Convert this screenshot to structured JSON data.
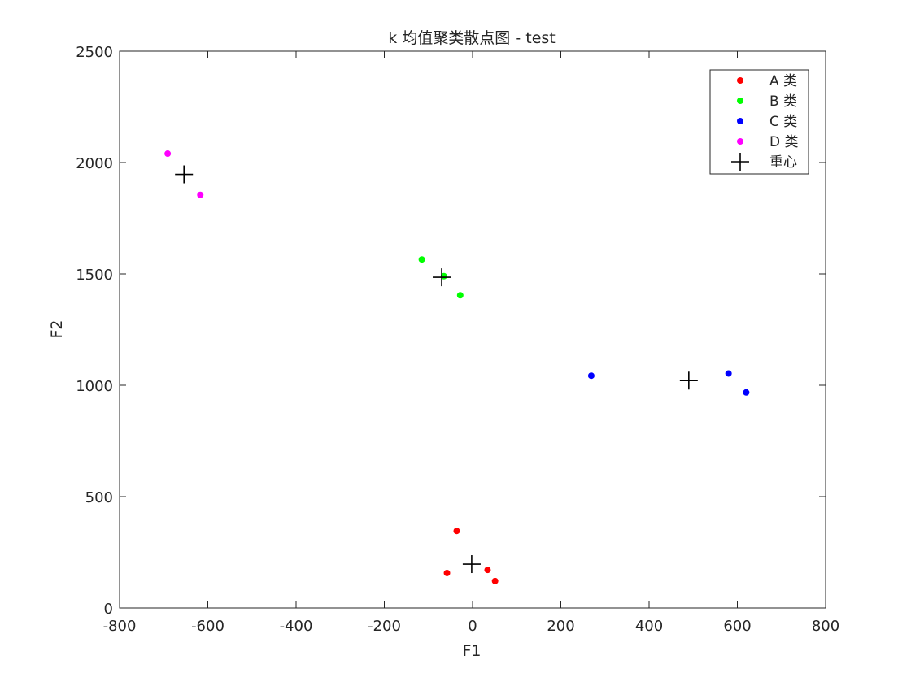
{
  "chart_data": {
    "type": "scatter",
    "title": "k 均值聚类散点图 - test",
    "xlabel": "F1",
    "ylabel": "F2",
    "xlim": [
      -800,
      800
    ],
    "ylim": [
      0,
      2500
    ],
    "xticks": [
      -800,
      -600,
      -400,
      -200,
      0,
      200,
      400,
      600,
      800
    ],
    "yticks": [
      0,
      500,
      1000,
      1500,
      2000,
      2500
    ],
    "grid": false,
    "legend_position": "top-right",
    "series": [
      {
        "name": "A 类",
        "color": "#ff0000",
        "marker": "dot",
        "points": [
          [
            -36,
            346
          ],
          [
            -58,
            157
          ],
          [
            34,
            171
          ],
          [
            51,
            121
          ]
        ]
      },
      {
        "name": "B 类",
        "color": "#00ff00",
        "marker": "dot",
        "points": [
          [
            -115,
            1565
          ],
          [
            -65,
            1490
          ],
          [
            -28,
            1404
          ]
        ]
      },
      {
        "name": "C 类",
        "color": "#0000ff",
        "marker": "dot",
        "points": [
          [
            269,
            1043
          ],
          [
            580,
            1053
          ],
          [
            620,
            968
          ]
        ]
      },
      {
        "name": "D 类",
        "color": "#ff00ff",
        "marker": "dot",
        "points": [
          [
            -691,
            2040
          ],
          [
            -617,
            1855
          ]
        ]
      },
      {
        "name": "重心",
        "color": "#000000",
        "marker": "plus",
        "points": [
          [
            -654,
            1947
          ],
          [
            -70,
            1485
          ],
          [
            490,
            1021
          ],
          [
            -2,
            197
          ]
        ]
      }
    ]
  }
}
